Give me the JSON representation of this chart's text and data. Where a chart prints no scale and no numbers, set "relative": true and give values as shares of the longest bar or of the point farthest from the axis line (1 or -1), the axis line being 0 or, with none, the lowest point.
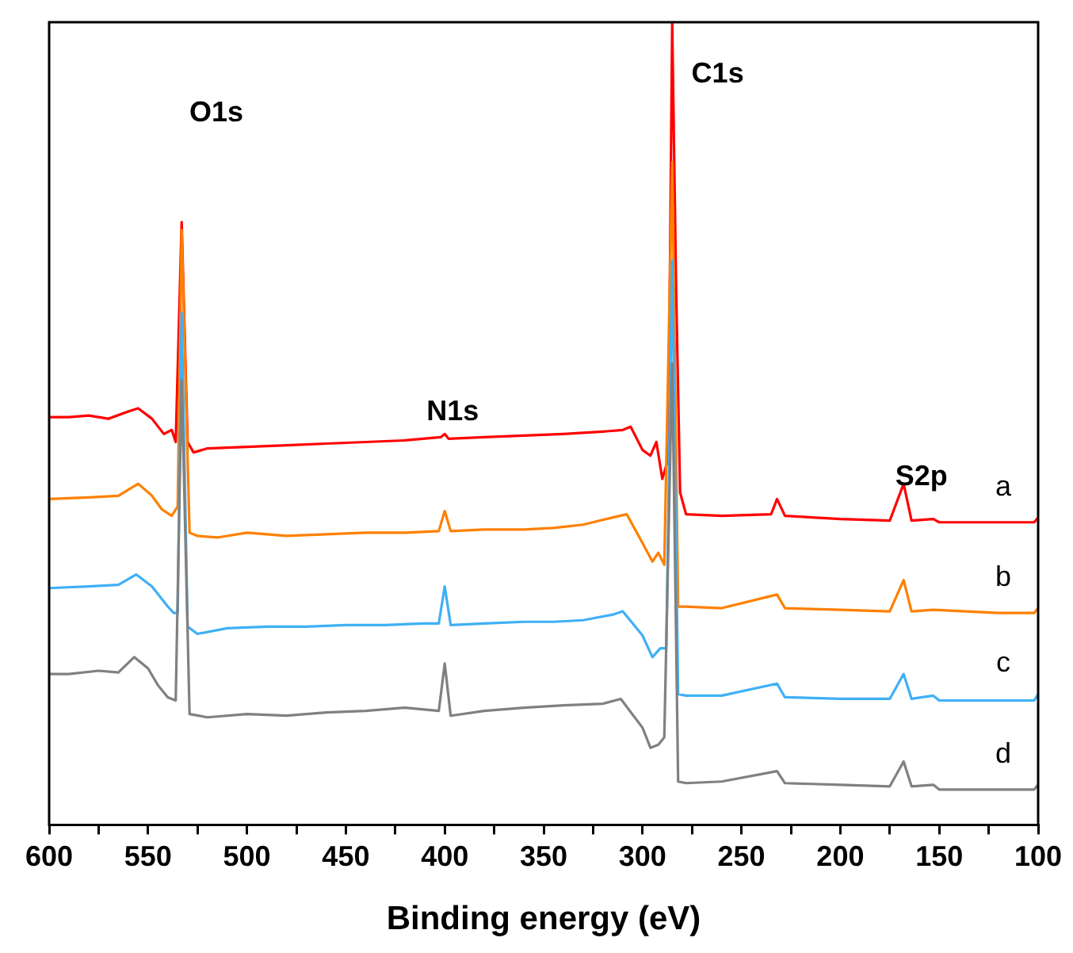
{
  "chart_data": {
    "type": "line",
    "relative": true,
    "xlabel": "Binding energy (eV)",
    "xlim": [
      600,
      100
    ],
    "xticks": [
      600,
      {
        "value": 575,
        "label": null
      },
      550,
      {
        "value": 525,
        "label": null
      },
      500,
      {
        "value": 475,
        "label": null
      },
      450,
      {
        "value": 425,
        "label": null
      },
      400,
      {
        "value": 375,
        "label": null
      },
      350,
      {
        "value": 325,
        "label": null
      },
      300,
      {
        "value": 275,
        "label": null
      },
      250,
      {
        "value": 225,
        "label": null
      },
      200,
      {
        "value": 175,
        "label": null
      },
      150,
      {
        "value": 125,
        "label": null
      },
      100
    ],
    "grid": false,
    "legend": false,
    "marker": "none",
    "line_style": "solid",
    "annotations": [
      "O1s",
      "N1s",
      "C1s",
      "S2p"
    ],
    "series": [
      {
        "name": "a",
        "color": "#ff0000",
        "x": [
          600,
          590,
          580,
          570,
          560,
          555,
          548,
          542,
          538,
          536,
          533,
          530,
          527,
          520,
          500,
          480,
          460,
          440,
          420,
          402,
          400,
          398,
          380,
          360,
          340,
          320,
          310,
          306,
          300,
          296,
          293,
          290,
          287,
          285,
          283,
          281,
          278,
          260,
          235,
          232,
          228,
          200,
          175,
          168,
          164,
          153,
          150,
          120,
          102,
          100
        ],
        "values": [
          0.508,
          0.508,
          0.51,
          0.506,
          0.515,
          0.519,
          0.506,
          0.487,
          0.492,
          0.477,
          0.751,
          0.477,
          0.464,
          0.469,
          0.471,
          0.473,
          0.475,
          0.477,
          0.479,
          0.483,
          0.487,
          0.481,
          0.483,
          0.485,
          0.487,
          0.49,
          0.492,
          0.496,
          0.467,
          0.46,
          0.477,
          0.431,
          0.456,
          1,
          0.665,
          0.414,
          0.387,
          0.385,
          0.387,
          0.406,
          0.385,
          0.381,
          0.379,
          0.425,
          0.379,
          0.381,
          0.377,
          0.377,
          0.377,
          0.383
        ]
      },
      {
        "name": "b",
        "color": "#ff8000",
        "x": [
          600,
          580,
          565,
          555,
          548,
          543,
          538,
          535,
          533,
          529,
          525,
          515,
          500,
          480,
          460,
          440,
          420,
          403,
          400,
          397,
          380,
          360,
          345,
          330,
          315,
          308,
          300,
          295,
          292,
          289,
          285,
          282,
          278,
          260,
          232,
          228,
          200,
          175,
          168,
          164,
          153,
          120,
          102,
          100
        ],
        "values": [
          0.406,
          0.408,
          0.41,
          0.425,
          0.41,
          0.393,
          0.385,
          0.397,
          0.741,
          0.364,
          0.36,
          0.358,
          0.364,
          0.36,
          0.362,
          0.364,
          0.364,
          0.366,
          0.391,
          0.366,
          0.368,
          0.368,
          0.37,
          0.374,
          0.383,
          0.387,
          0.351,
          0.328,
          0.339,
          0.324,
          0.826,
          0.272,
          0.272,
          0.27,
          0.287,
          0.27,
          0.268,
          0.266,
          0.305,
          0.266,
          0.268,
          0.264,
          0.264,
          0.27
        ]
      },
      {
        "name": "c",
        "color": "#3fb0f5",
        "x": [
          600,
          580,
          565,
          556,
          548,
          540,
          537,
          535,
          533,
          530,
          525,
          510,
          490,
          470,
          450,
          430,
          410,
          403,
          400,
          397,
          380,
          360,
          345,
          330,
          315,
          310,
          300,
          295,
          291,
          288,
          285,
          282,
          278,
          260,
          232,
          228,
          200,
          175,
          168,
          164,
          153,
          150,
          120,
          102,
          100
        ],
        "values": [
          0.295,
          0.297,
          0.299,
          0.312,
          0.297,
          0.272,
          0.264,
          0.264,
          0.638,
          0.247,
          0.238,
          0.245,
          0.247,
          0.247,
          0.249,
          0.249,
          0.251,
          0.251,
          0.297,
          0.249,
          0.251,
          0.253,
          0.253,
          0.255,
          0.262,
          0.266,
          0.236,
          0.209,
          0.22,
          0.22,
          0.703,
          0.163,
          0.161,
          0.161,
          0.176,
          0.159,
          0.157,
          0.157,
          0.188,
          0.157,
          0.161,
          0.155,
          0.155,
          0.155,
          0.163
        ]
      },
      {
        "name": "d",
        "color": "#808080",
        "x": [
          600,
          590,
          575,
          565,
          557,
          550,
          545,
          540,
          536,
          533,
          529,
          520,
          500,
          480,
          460,
          440,
          420,
          403,
          400,
          397,
          380,
          360,
          340,
          320,
          311,
          300,
          296,
          292,
          289,
          285,
          282,
          278,
          260,
          232,
          228,
          200,
          175,
          168,
          164,
          153,
          150,
          120,
          102,
          100
        ],
        "values": [
          0.188,
          0.188,
          0.192,
          0.19,
          0.209,
          0.195,
          0.174,
          0.159,
          0.155,
          0.554,
          0.138,
          0.134,
          0.138,
          0.136,
          0.14,
          0.142,
          0.146,
          0.142,
          0.201,
          0.136,
          0.142,
          0.146,
          0.149,
          0.151,
          0.157,
          0.121,
          0.096,
          0.1,
          0.109,
          0.575,
          0.054,
          0.052,
          0.054,
          0.067,
          0.052,
          0.05,
          0.048,
          0.079,
          0.048,
          0.05,
          0.044,
          0.044,
          0.044,
          0.05
        ]
      }
    ]
  }
}
